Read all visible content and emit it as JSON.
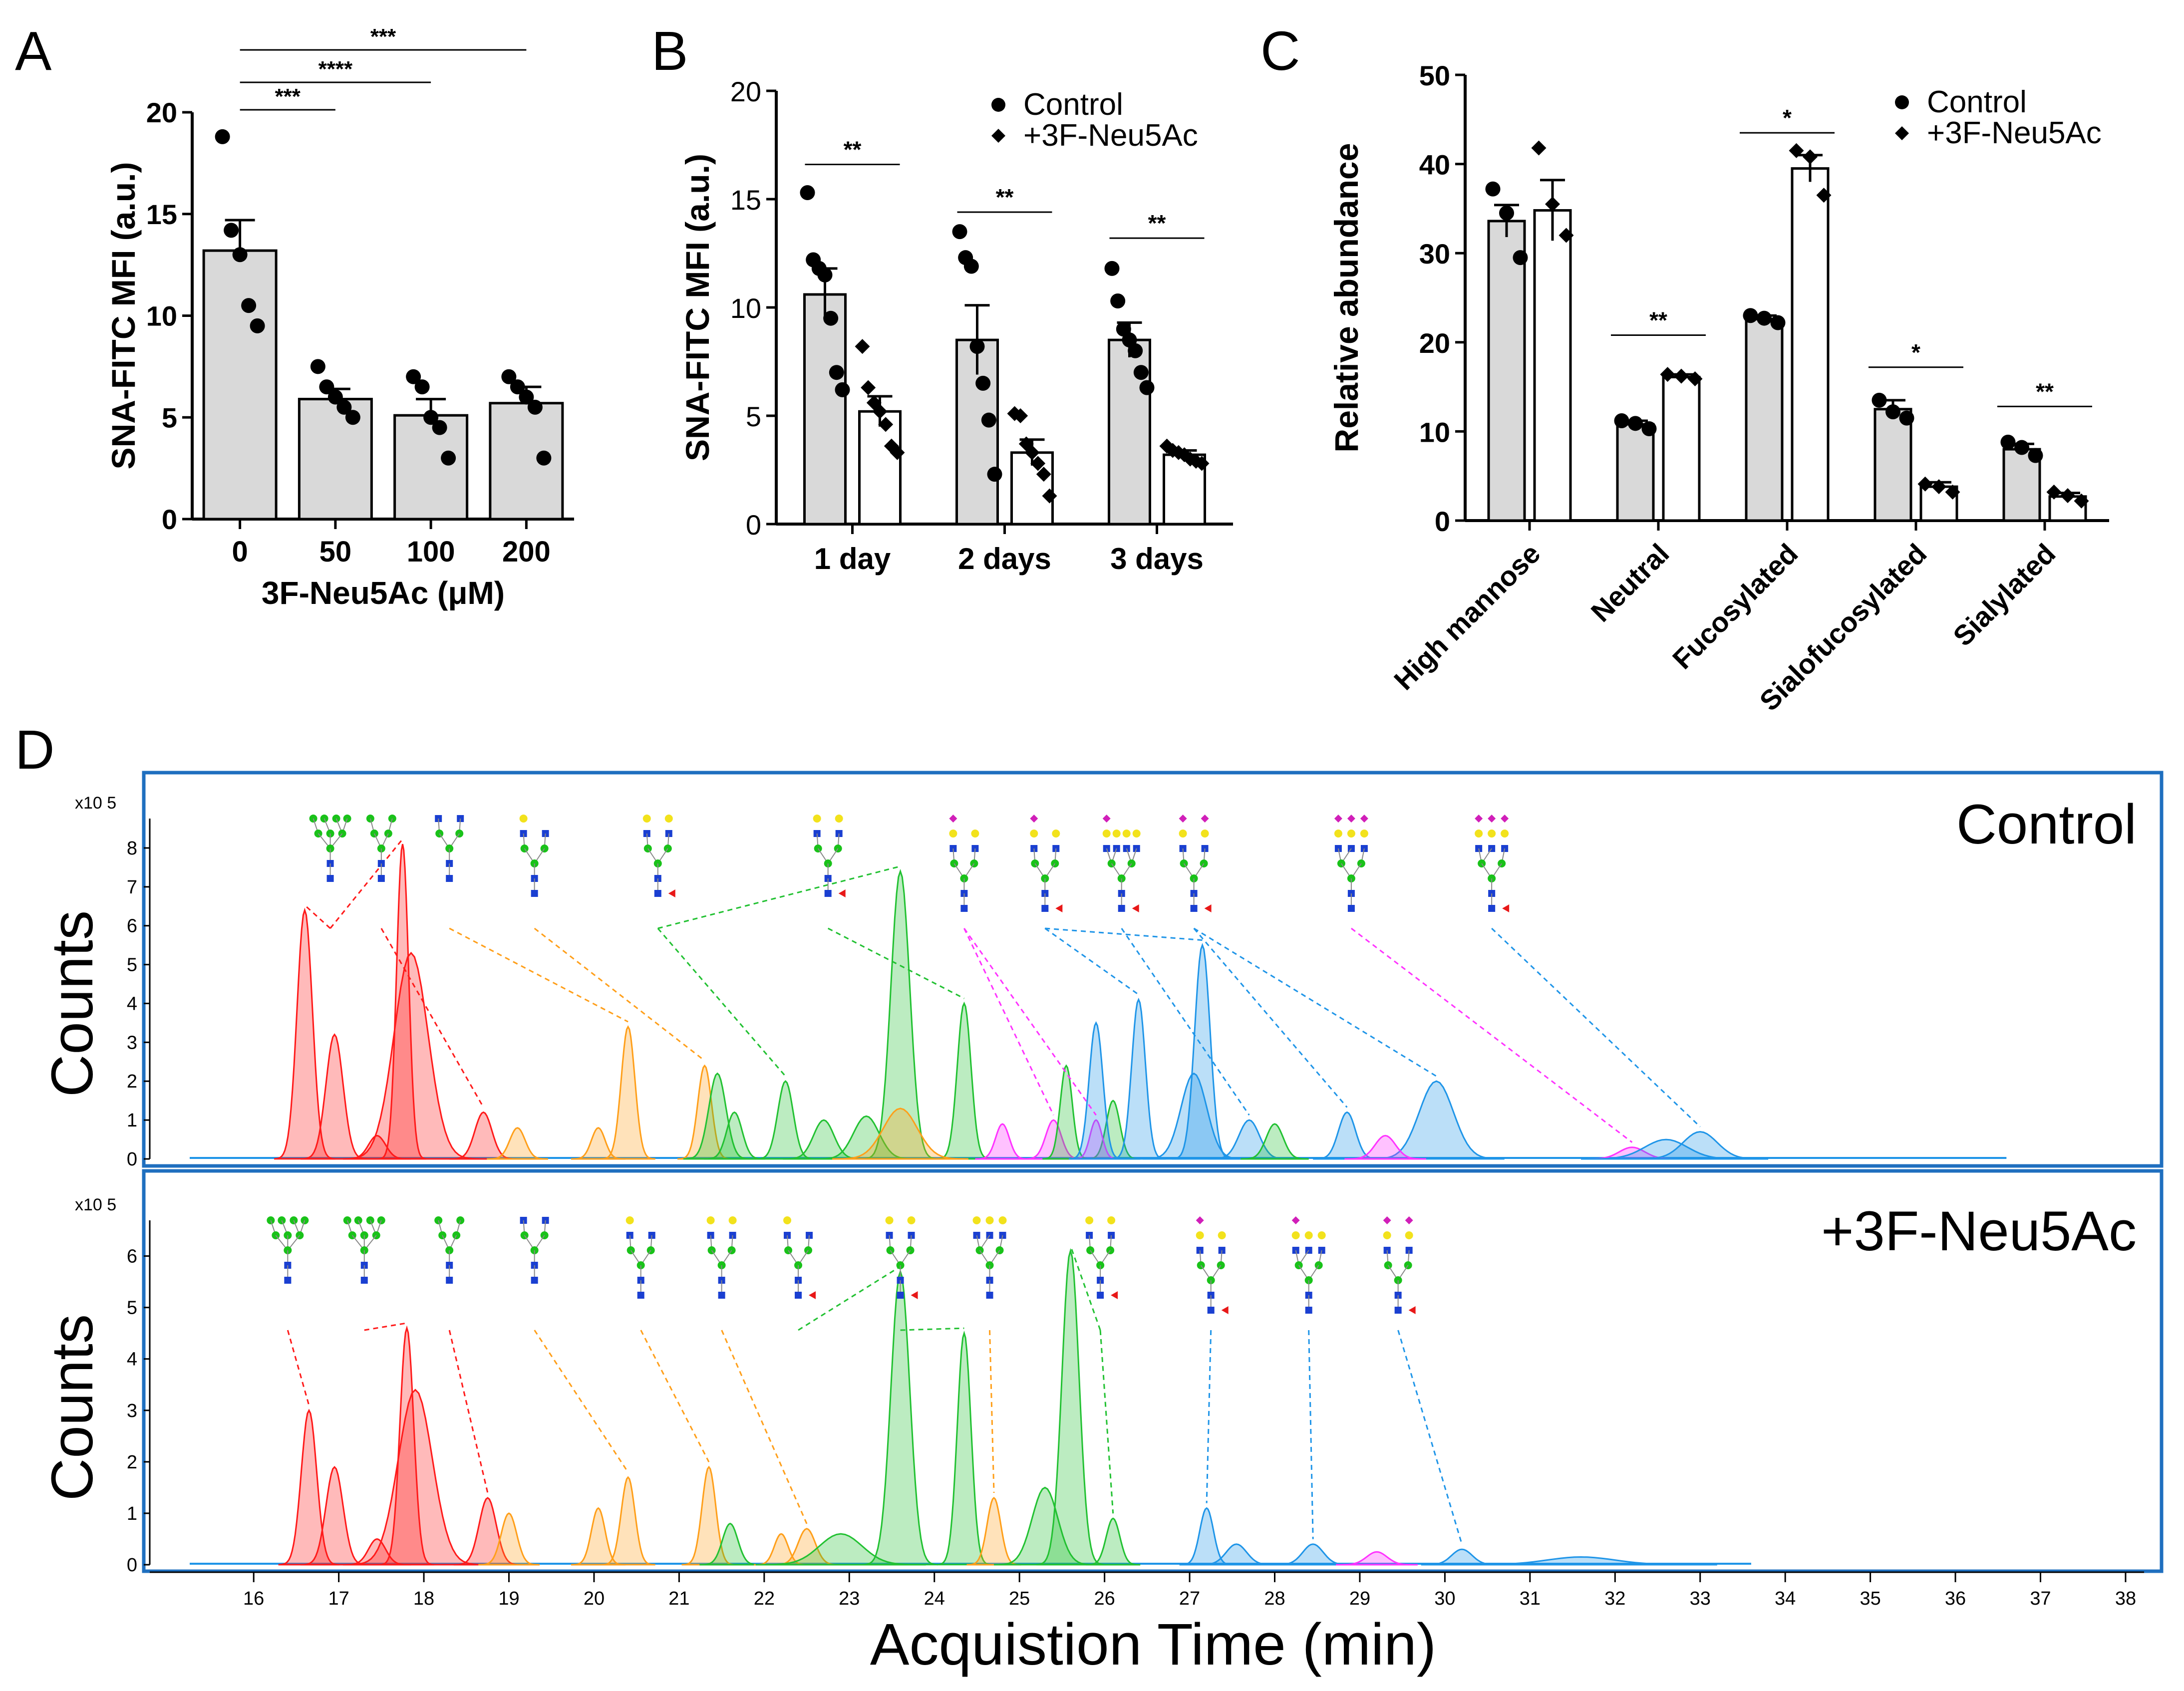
{
  "colors": {
    "bar_control": "#d9d9d9",
    "bar_treated": "#ffffff",
    "axis": "#000000",
    "panel_border": "#1f6fbf",
    "trace_red": "#ff1a1a",
    "trace_orange": "#ff9f1a",
    "trace_green": "#22c132",
    "trace_magenta": "#ff33ff",
    "trace_blue": "#1f95e8",
    "glycan_green": "#19c219",
    "glycan_blue": "#1a3fd1",
    "glycan_yellow": "#f2e21c",
    "glycan_magenta": "#d11fb9",
    "glycan_red": "#e81818"
  },
  "chart_data": [
    {
      "panel": "A",
      "type": "bar",
      "categories": [
        "0",
        "50",
        "100",
        "200"
      ],
      "values": [
        13.2,
        5.9,
        5.1,
        5.7
      ],
      "errors": [
        1.5,
        0.5,
        0.8,
        0.8
      ],
      "points": [
        [
          18.8,
          14.2,
          13.0,
          10.5,
          9.5
        ],
        [
          7.5,
          6.5,
          6.0,
          5.5,
          5.0
        ],
        [
          7.0,
          6.5,
          5.0,
          4.5,
          3.0
        ],
        [
          7.0,
          6.5,
          6.0,
          5.5,
          3.0
        ]
      ],
      "xlabel": "3F-Neu5Ac (μM)",
      "ylabel": "SNA-FITC MFI (a.u.)",
      "ylim": [
        0,
        20
      ],
      "yticks": [
        "0",
        "5",
        "10",
        "15",
        "20"
      ],
      "significance": [
        {
          "from": 0,
          "to": 1,
          "label": "***"
        },
        {
          "from": 0,
          "to": 2,
          "label": "****"
        },
        {
          "from": 0,
          "to": 3,
          "label": "***"
        }
      ]
    },
    {
      "panel": "B",
      "type": "bar",
      "categories": [
        "1 day",
        "2 days",
        "3 days"
      ],
      "series": [
        {
          "name": "Control",
          "marker": "circle",
          "values": [
            10.6,
            8.5,
            8.5
          ],
          "errors": [
            1.2,
            1.6,
            0.8
          ],
          "points": [
            [
              15.3,
              12.2,
              11.8,
              11.5,
              9.5,
              7.0,
              6.2
            ],
            [
              13.5,
              12.3,
              11.9,
              8.2,
              6.5,
              4.8,
              2.3
            ],
            [
              11.8,
              10.3,
              9.0,
              8.5,
              8.0,
              7.0,
              6.3
            ]
          ]
        },
        {
          "name": "+3F-Neu5Ac",
          "marker": "diamond",
          "values": [
            5.2,
            3.3,
            3.2
          ],
          "errors": [
            0.7,
            0.6,
            0.2
          ],
          "points": [
            [
              8.2,
              6.3,
              5.6,
              5.2,
              4.6,
              3.6,
              3.3
            ],
            [
              5.1,
              5.0,
              3.7,
              3.3,
              2.8,
              2.3,
              1.3
            ],
            [
              3.6,
              3.4,
              3.3,
              3.2,
              3.0,
              2.9,
              2.8
            ]
          ]
        }
      ],
      "ylabel": "SNA-FITC MFI (a.u.)",
      "ylim": [
        0,
        20
      ],
      "yticks": [
        "0",
        "5",
        "10",
        "15",
        "20"
      ],
      "significance": [
        {
          "group": 0,
          "y": 16.6,
          "label": "**"
        },
        {
          "group": 1,
          "y": 14.4,
          "label": "**"
        },
        {
          "group": 2,
          "y": 13.2,
          "label": "**"
        }
      ]
    },
    {
      "panel": "C",
      "type": "bar",
      "categories": [
        "High mannose",
        "Neutral",
        "Fucosylated",
        "Sialofucosylated",
        "Sialylated"
      ],
      "series": [
        {
          "name": "Control",
          "marker": "circle",
          "values": [
            33.6,
            10.8,
            22.6,
            12.5,
            8.0
          ],
          "errors": [
            1.8,
            0.4,
            0.4,
            1.0,
            0.6
          ],
          "points": [
            [
              37.2,
              34.5,
              29.5
            ],
            [
              11.2,
              10.9,
              10.3
            ],
            [
              23.0,
              22.7,
              22.2
            ],
            [
              13.5,
              12.2,
              11.5
            ],
            [
              8.8,
              8.2,
              7.3
            ]
          ]
        },
        {
          "name": "+3F-Neu5Ac",
          "marker": "diamond",
          "values": [
            34.8,
            16.1,
            39.5,
            3.8,
            2.7
          ],
          "errors": [
            3.4,
            0.3,
            1.5,
            0.5,
            0.4
          ],
          "points": [
            [
              41.8,
              35.5,
              32.0
            ],
            [
              16.4,
              16.2,
              15.9
            ],
            [
              41.5,
              40.8,
              36.5
            ],
            [
              4.1,
              3.8,
              3.2
            ],
            [
              3.2,
              2.8,
              2.2
            ]
          ]
        }
      ],
      "ylabel": "Relative abundance",
      "ylim": [
        0,
        50
      ],
      "yticks": [
        "0",
        "10",
        "20",
        "30",
        "40",
        "50"
      ],
      "significance": [
        {
          "group": 1,
          "y": 20.8,
          "label": "**"
        },
        {
          "group": 2,
          "y": 43.5,
          "label": "*"
        },
        {
          "group": 3,
          "y": 17.2,
          "label": "*"
        },
        {
          "group": 4,
          "y": 12.8,
          "label": "**"
        }
      ]
    },
    {
      "panel": "D",
      "type": "area",
      "xlabel": "Acquistion Time (min)",
      "ylabel": "Counts",
      "xlim": [
        15.6,
        38.1
      ],
      "xticks": [
        "16",
        "17",
        "18",
        "19",
        "20",
        "21",
        "22",
        "23",
        "24",
        "25",
        "26",
        "27",
        "28",
        "29",
        "30",
        "31",
        "32",
        "33",
        "34",
        "35",
        "36",
        "37",
        "38"
      ],
      "panels": [
        {
          "name": "Control",
          "multiplier": "x10 5",
          "ylim": [
            0,
            8.5
          ],
          "yticks": [
            "0",
            "1",
            "2",
            "3",
            "4",
            "5",
            "6",
            "7",
            "8"
          ],
          "xrange": [
            15.6,
            36.6
          ],
          "peaks": [
            {
              "t": 16.6,
              "h": 6.4,
              "w": 0.09,
              "c": "red"
            },
            {
              "t": 16.95,
              "h": 3.2,
              "w": 0.1,
              "c": "red"
            },
            {
              "t": 17.75,
              "h": 8.1,
              "w": 0.07,
              "c": "red"
            },
            {
              "t": 17.85,
              "h": 5.3,
              "w": 0.2,
              "c": "red"
            },
            {
              "t": 17.45,
              "h": 0.6,
              "w": 0.1,
              "c": "red"
            },
            {
              "t": 18.7,
              "h": 1.2,
              "w": 0.1,
              "c": "red"
            },
            {
              "t": 19.1,
              "h": 0.8,
              "w": 0.09,
              "c": "orange"
            },
            {
              "t": 20.05,
              "h": 0.8,
              "w": 0.08,
              "c": "orange"
            },
            {
              "t": 20.4,
              "h": 3.4,
              "w": 0.08,
              "c": "orange"
            },
            {
              "t": 21.3,
              "h": 2.4,
              "w": 0.08,
              "c": "orange"
            },
            {
              "t": 21.45,
              "h": 2.2,
              "w": 0.1,
              "c": "green"
            },
            {
              "t": 21.65,
              "h": 1.2,
              "w": 0.09,
              "c": "green"
            },
            {
              "t": 22.25,
              "h": 2.0,
              "w": 0.09,
              "c": "green"
            },
            {
              "t": 22.7,
              "h": 1.0,
              "w": 0.12,
              "c": "green"
            },
            {
              "t": 23.2,
              "h": 1.1,
              "w": 0.15,
              "c": "green"
            },
            {
              "t": 23.6,
              "h": 7.4,
              "w": 0.11,
              "c": "green"
            },
            {
              "t": 24.35,
              "h": 4.0,
              "w": 0.08,
              "c": "green"
            },
            {
              "t": 23.6,
              "h": 1.3,
              "w": 0.2,
              "c": "orange"
            },
            {
              "t": 24.8,
              "h": 0.9,
              "w": 0.08,
              "c": "magenta"
            },
            {
              "t": 25.4,
              "h": 1.0,
              "w": 0.09,
              "c": "magenta"
            },
            {
              "t": 25.55,
              "h": 2.4,
              "w": 0.07,
              "c": "green"
            },
            {
              "t": 26.1,
              "h": 1.5,
              "w": 0.08,
              "c": "green"
            },
            {
              "t": 25.9,
              "h": 1.0,
              "w": 0.07,
              "c": "magenta"
            },
            {
              "t": 25.9,
              "h": 3.5,
              "w": 0.08,
              "c": "blue"
            },
            {
              "t": 26.4,
              "h": 4.1,
              "w": 0.08,
              "c": "blue"
            },
            {
              "t": 27.15,
              "h": 5.5,
              "w": 0.09,
              "c": "blue"
            },
            {
              "t": 27.05,
              "h": 2.2,
              "w": 0.15,
              "c": "blue"
            },
            {
              "t": 27.7,
              "h": 1.0,
              "w": 0.12,
              "c": "blue"
            },
            {
              "t": 28.0,
              "h": 0.9,
              "w": 0.1,
              "c": "green"
            },
            {
              "t": 28.85,
              "h": 1.2,
              "w": 0.1,
              "c": "blue"
            },
            {
              "t": 29.9,
              "h": 2.0,
              "w": 0.2,
              "c": "blue"
            },
            {
              "t": 29.3,
              "h": 0.6,
              "w": 0.12,
              "c": "magenta"
            },
            {
              "t": 32.2,
              "h": 0.3,
              "w": 0.15,
              "c": "magenta"
            },
            {
              "t": 32.6,
              "h": 0.5,
              "w": 0.25,
              "c": "blue"
            },
            {
              "t": 33.0,
              "h": 0.7,
              "w": 0.2,
              "c": "blue"
            }
          ],
          "glycans": [
            {
              "t": 16.9,
              "type": "HM9",
              "targets": [
                16.6,
                17.75
              ]
            },
            {
              "t": 17.5,
              "type": "HM5",
              "targets": [
                18.7
              ]
            },
            {
              "t": 18.3,
              "type": "G0",
              "targets": [
                20.4
              ]
            },
            {
              "t": 19.3,
              "type": "G1",
              "targets": [
                21.3
              ]
            },
            {
              "t": 20.75,
              "type": "G2F",
              "targets": [
                22.25,
                23.6
              ]
            },
            {
              "t": 22.75,
              "type": "G2FB",
              "targets": [
                24.35
              ]
            },
            {
              "t": 24.35,
              "type": "S1G1",
              "targets": [
                25.9,
                25.4
              ]
            },
            {
              "t": 25.3,
              "type": "S1G1F",
              "targets": [
                26.4,
                27.15
              ]
            },
            {
              "t": 26.2,
              "type": "S1G2BF",
              "targets": [
                27.7
              ]
            },
            {
              "t": 27.05,
              "type": "S2G2F",
              "targets": [
                28.85,
                29.9
              ]
            },
            {
              "t": 28.9,
              "type": "S3",
              "targets": [
                32.2
              ]
            },
            {
              "t": 30.55,
              "type": "S3F",
              "targets": [
                33.0
              ]
            }
          ]
        },
        {
          "name": "+3F-Neu5Ac",
          "multiplier": "x10 5",
          "ylim": [
            0,
            6.5
          ],
          "yticks": [
            "0",
            "1",
            "2",
            "3",
            "4",
            "5",
            "6"
          ],
          "xrange": [
            15.6,
            33.6
          ],
          "peaks": [
            {
              "t": 16.65,
              "h": 3.0,
              "w": 0.09,
              "c": "red"
            },
            {
              "t": 16.95,
              "h": 1.9,
              "w": 0.1,
              "c": "red"
            },
            {
              "t": 17.8,
              "h": 4.6,
              "w": 0.08,
              "c": "red"
            },
            {
              "t": 17.9,
              "h": 3.4,
              "w": 0.2,
              "c": "red"
            },
            {
              "t": 17.45,
              "h": 0.5,
              "w": 0.1,
              "c": "red"
            },
            {
              "t": 18.75,
              "h": 1.3,
              "w": 0.1,
              "c": "red"
            },
            {
              "t": 19.0,
              "h": 1.0,
              "w": 0.09,
              "c": "orange"
            },
            {
              "t": 20.05,
              "h": 1.1,
              "w": 0.08,
              "c": "orange"
            },
            {
              "t": 20.4,
              "h": 1.7,
              "w": 0.08,
              "c": "orange"
            },
            {
              "t": 21.35,
              "h": 1.9,
              "w": 0.08,
              "c": "orange"
            },
            {
              "t": 21.6,
              "h": 0.8,
              "w": 0.09,
              "c": "green"
            },
            {
              "t": 22.2,
              "h": 0.6,
              "w": 0.08,
              "c": "orange"
            },
            {
              "t": 22.5,
              "h": 0.7,
              "w": 0.1,
              "c": "orange"
            },
            {
              "t": 22.9,
              "h": 0.6,
              "w": 0.25,
              "c": "green"
            },
            {
              "t": 23.6,
              "h": 5.7,
              "w": 0.11,
              "c": "green"
            },
            {
              "t": 24.35,
              "h": 4.5,
              "w": 0.08,
              "c": "green"
            },
            {
              "t": 24.7,
              "h": 1.3,
              "w": 0.08,
              "c": "orange"
            },
            {
              "t": 25.3,
              "h": 1.5,
              "w": 0.15,
              "c": "green"
            },
            {
              "t": 25.6,
              "h": 6.1,
              "w": 0.1,
              "c": "green"
            },
            {
              "t": 26.1,
              "h": 0.9,
              "w": 0.08,
              "c": "green"
            },
            {
              "t": 27.2,
              "h": 1.1,
              "w": 0.08,
              "c": "blue"
            },
            {
              "t": 27.55,
              "h": 0.4,
              "w": 0.12,
              "c": "blue"
            },
            {
              "t": 28.45,
              "h": 0.4,
              "w": 0.12,
              "c": "blue"
            },
            {
              "t": 29.2,
              "h": 0.25,
              "w": 0.12,
              "c": "magenta"
            },
            {
              "t": 30.2,
              "h": 0.3,
              "w": 0.12,
              "c": "blue"
            },
            {
              "t": 31.6,
              "h": 0.15,
              "w": 0.4,
              "c": "blue"
            }
          ],
          "glycans": [
            {
              "t": 16.4,
              "type": "HM9",
              "targets": [
                16.65
              ]
            },
            {
              "t": 17.3,
              "type": "HM9",
              "targets": [
                17.8
              ]
            },
            {
              "t": 18.3,
              "type": "HM5",
              "targets": [
                18.75
              ]
            },
            {
              "t": 19.3,
              "type": "G0",
              "targets": [
                20.4
              ]
            },
            {
              "t": 20.55,
              "type": "G1",
              "targets": [
                21.35
              ]
            },
            {
              "t": 21.5,
              "type": "G2",
              "targets": [
                22.5
              ]
            },
            {
              "t": 22.4,
              "type": "G1F",
              "targets": [
                23.6
              ]
            },
            {
              "t": 23.6,
              "type": "G2FB",
              "targets": [
                24.35
              ]
            },
            {
              "t": 24.65,
              "type": "G4",
              "targets": [
                24.7
              ]
            },
            {
              "t": 25.95,
              "type": "G3F",
              "targets": [
                25.6,
                26.1
              ]
            },
            {
              "t": 27.25,
              "type": "S1G1F",
              "targets": [
                27.2
              ]
            },
            {
              "t": 28.4,
              "type": "S1G3",
              "targets": [
                28.45
              ]
            },
            {
              "t": 29.45,
              "type": "S2G2F",
              "targets": [
                30.2
              ]
            }
          ]
        }
      ]
    }
  ],
  "labels": {
    "panel_a": "A",
    "panel_b": "B",
    "panel_c": "C",
    "panel_d": "D",
    "legend_control": "Control",
    "legend_treated": "+3F-Neu5Ac",
    "d_control": "Control",
    "d_treated": "+3F-Neu5Ac"
  }
}
